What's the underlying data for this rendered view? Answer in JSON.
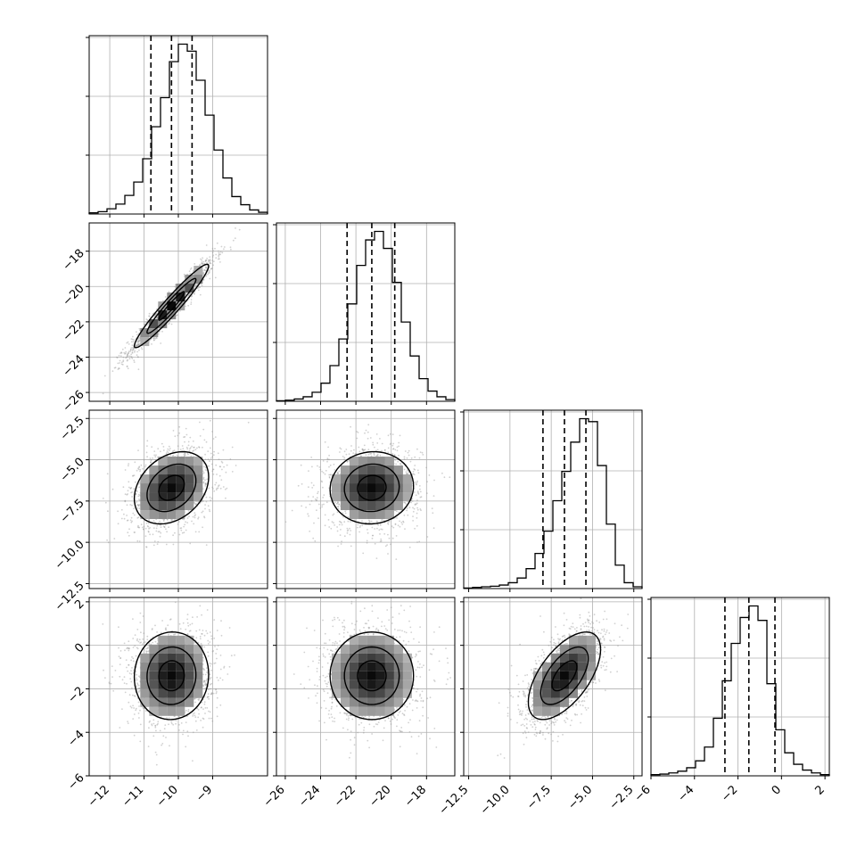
{
  "chart_data": {
    "type": "corner",
    "colors": {
      "axes": "#000000",
      "grid": "#b0b0b0",
      "scatter": "#9a9a9a",
      "contour": "#000000",
      "quantile": "#000000"
    },
    "quantiles": [
      0.16,
      0.5,
      0.84
    ],
    "grid": true,
    "parameters": [
      {
        "center": -10.2,
        "sigma": 0.62,
        "range": [
          -12.6,
          -7.4
        ],
        "ticks": [
          -12,
          -11,
          -10,
          -9
        ],
        "tick_labels": [
          "−12",
          "−11",
          "−10",
          "−9"
        ],
        "quantile_values": [
          -10.8,
          -10.2,
          -9.6
        ]
      },
      {
        "center": -21.1,
        "sigma": 1.35,
        "range": [
          -26.5,
          -16.4
        ],
        "ticks": [
          -26,
          -24,
          -22,
          -20,
          -18
        ],
        "tick_labels": [
          "−26",
          "−24",
          "−22",
          "−20",
          "−18"
        ],
        "quantile_values": [
          -22.5,
          -21.1,
          -19.8
        ]
      },
      {
        "center": -6.7,
        "sigma": 1.25,
        "range": [
          -12.8,
          -2.0
        ],
        "ticks": [
          -12.5,
          -10.0,
          -7.5,
          -5.0,
          -2.5
        ],
        "tick_labels": [
          "−12.5",
          "−10.0",
          "−7.5",
          "−5.0",
          "−2.5"
        ],
        "quantile_values": [
          -8.0,
          -6.7,
          -5.4
        ]
      },
      {
        "center": -1.4,
        "sigma": 1.15,
        "range": [
          -6.0,
          2.2
        ],
        "ticks": [
          -6,
          -4,
          -2,
          0,
          2
        ],
        "tick_labels": [
          "−6",
          "−4",
          "−2",
          "0",
          "2"
        ],
        "quantile_values": [
          -2.6,
          -1.5,
          -0.3
        ]
      }
    ],
    "correlations": [
      {
        "pair": [
          0,
          1
        ],
        "rho": 0.96
      },
      {
        "pair": [
          0,
          2
        ],
        "rho": 0.3
      },
      {
        "pair": [
          1,
          2
        ],
        "rho": 0.05
      },
      {
        "pair": [
          0,
          3
        ],
        "rho": 0.03
      },
      {
        "pair": [
          1,
          3
        ],
        "rho": 0.0
      },
      {
        "pair": [
          2,
          3
        ],
        "rho": 0.6
      }
    ],
    "histogram_counts": [
      [
        2,
        4,
        9,
        17,
        32,
        55,
        95,
        150,
        200,
        262,
        292,
        280,
        230,
        170,
        110,
        62,
        30,
        16,
        7,
        3
      ],
      [
        1,
        2,
        4,
        8,
        16,
        32,
        63,
        110,
        172,
        240,
        285,
        300,
        270,
        210,
        140,
        80,
        40,
        18,
        8,
        3
      ],
      [
        1,
        2,
        3,
        4,
        6,
        10,
        18,
        34,
        60,
        98,
        150,
        200,
        250,
        290,
        285,
        210,
        110,
        40,
        10,
        3
      ],
      [
        2,
        3,
        5,
        8,
        14,
        26,
        50,
        100,
        165,
        230,
        275,
        295,
        270,
        160,
        80,
        40,
        20,
        10,
        5,
        2
      ]
    ]
  }
}
